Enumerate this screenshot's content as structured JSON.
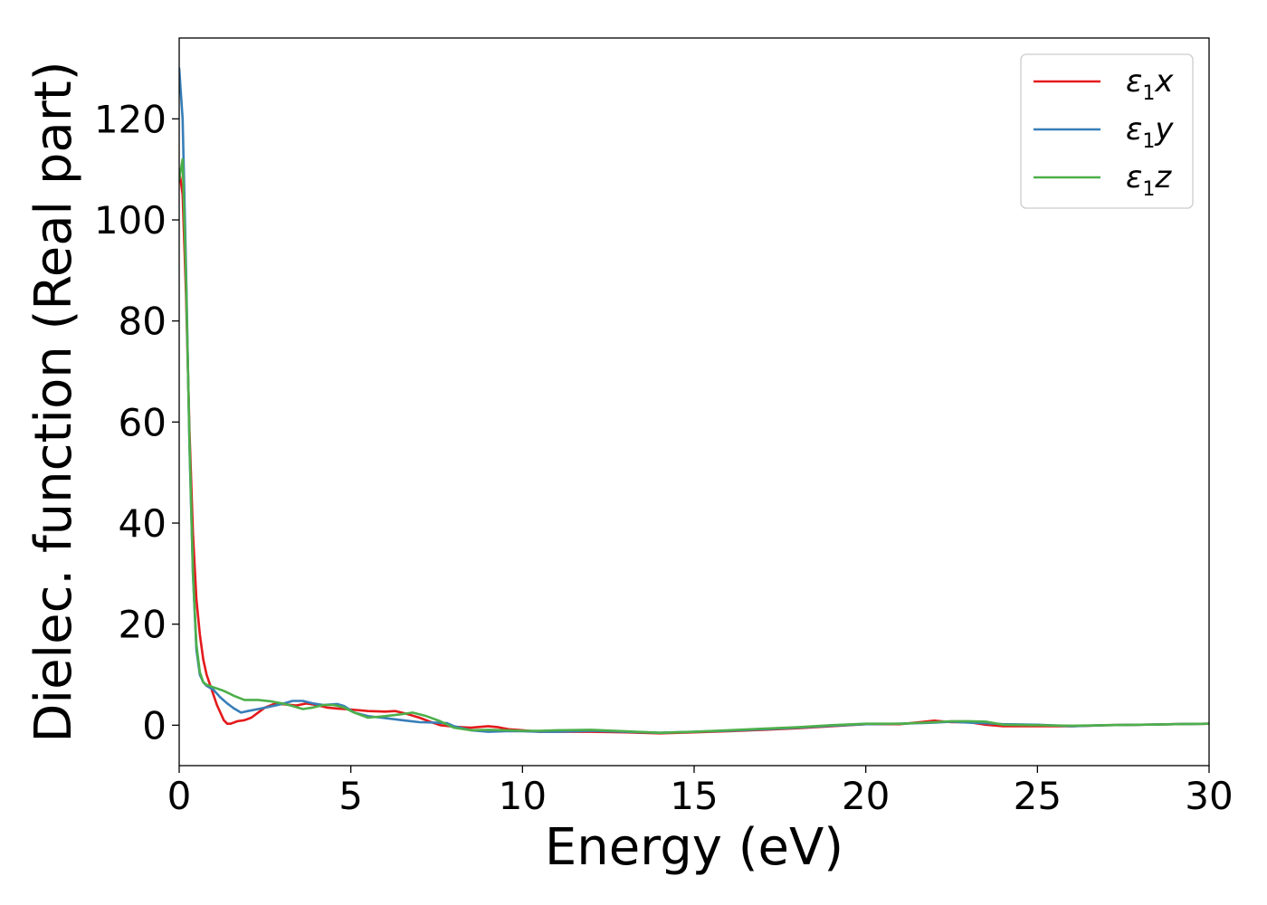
{
  "chart_data": {
    "type": "line",
    "xlabel": "Energy (eV)",
    "ylabel": "Dielec. function (Real part)",
    "xlim": [
      0,
      30
    ],
    "ylim": [
      -8,
      136
    ],
    "xticks": [
      0,
      5,
      10,
      15,
      20,
      25,
      30
    ],
    "yticks": [
      0,
      20,
      40,
      60,
      80,
      100,
      120
    ],
    "grid": false,
    "legend_position": "top-right",
    "series": [
      {
        "name": "ε1x",
        "symbol": "ε",
        "subscript": "1",
        "axis": "x",
        "color": "#e41a1c",
        "points": [
          [
            0,
            110
          ],
          [
            0.1,
            105
          ],
          [
            0.2,
            85
          ],
          [
            0.3,
            58
          ],
          [
            0.4,
            38
          ],
          [
            0.5,
            25
          ],
          [
            0.6,
            18
          ],
          [
            0.7,
            13
          ],
          [
            0.8,
            10
          ],
          [
            0.9,
            8
          ],
          [
            1.0,
            6
          ],
          [
            1.1,
            4
          ],
          [
            1.2,
            2.5
          ],
          [
            1.3,
            1
          ],
          [
            1.4,
            0.3
          ],
          [
            1.5,
            0.3
          ],
          [
            1.7,
            0.8
          ],
          [
            1.9,
            1
          ],
          [
            2.1,
            1.5
          ],
          [
            2.3,
            2.5
          ],
          [
            2.5,
            3.5
          ],
          [
            2.8,
            4.3
          ],
          [
            3.1,
            4.1
          ],
          [
            3.4,
            3.9
          ],
          [
            3.7,
            4.3
          ],
          [
            4.0,
            4
          ],
          [
            4.3,
            3.5
          ],
          [
            4.6,
            3.3
          ],
          [
            5.0,
            3.1
          ],
          [
            5.5,
            2.8
          ],
          [
            6.0,
            2.7
          ],
          [
            6.3,
            2.8
          ],
          [
            6.6,
            2.3
          ],
          [
            7.0,
            1.5
          ],
          [
            7.3,
            0.7
          ],
          [
            7.6,
            0
          ],
          [
            8.0,
            -0.3
          ],
          [
            8.5,
            -0.5
          ],
          [
            9.0,
            -0.2
          ],
          [
            9.3,
            -0.4
          ],
          [
            9.6,
            -0.8
          ],
          [
            10.0,
            -1
          ],
          [
            10.5,
            -1.3
          ],
          [
            11.0,
            -1.3
          ],
          [
            12.0,
            -1.3
          ],
          [
            13.0,
            -1.4
          ],
          [
            14.0,
            -1.6
          ],
          [
            15.0,
            -1.4
          ],
          [
            16.0,
            -1.2
          ],
          [
            17.0,
            -0.9
          ],
          [
            18.0,
            -0.6
          ],
          [
            19.0,
            -0.2
          ],
          [
            20.0,
            0.2
          ],
          [
            21.0,
            0.2
          ],
          [
            22.0,
            0.9
          ],
          [
            22.5,
            0.6
          ],
          [
            23.0,
            0.6
          ],
          [
            23.5,
            0.1
          ],
          [
            24.0,
            -0.2
          ],
          [
            25.0,
            -0.2
          ],
          [
            26.0,
            -0.2
          ],
          [
            27.0,
            0
          ],
          [
            28.0,
            0.1
          ],
          [
            29.0,
            0.2
          ],
          [
            30.0,
            0.3
          ]
        ]
      },
      {
        "name": "ε1y",
        "symbol": "ε",
        "subscript": "1",
        "axis": "y",
        "color": "#377eb8",
        "points": [
          [
            0,
            130
          ],
          [
            0.1,
            120
          ],
          [
            0.2,
            90
          ],
          [
            0.3,
            55
          ],
          [
            0.4,
            30
          ],
          [
            0.5,
            15
          ],
          [
            0.6,
            10
          ],
          [
            0.7,
            8.5
          ],
          [
            0.8,
            7.8
          ],
          [
            1.0,
            7
          ],
          [
            1.2,
            5.5
          ],
          [
            1.4,
            4.3
          ],
          [
            1.6,
            3.3
          ],
          [
            1.8,
            2.5
          ],
          [
            2.0,
            2.8
          ],
          [
            2.3,
            3.2
          ],
          [
            2.6,
            3.6
          ],
          [
            3.0,
            4.2
          ],
          [
            3.3,
            4.8
          ],
          [
            3.6,
            4.8
          ],
          [
            3.9,
            4.3
          ],
          [
            4.2,
            4
          ],
          [
            4.6,
            4.2
          ],
          [
            4.8,
            3.8
          ],
          [
            5.1,
            2.5
          ],
          [
            5.5,
            1.8
          ],
          [
            6.0,
            1.4
          ],
          [
            6.5,
            1
          ],
          [
            7.0,
            0.6
          ],
          [
            7.5,
            0.5
          ],
          [
            7.8,
            0.4
          ],
          [
            8.0,
            -0.2
          ],
          [
            8.5,
            -1
          ],
          [
            9.0,
            -1.3
          ],
          [
            9.5,
            -1.2
          ],
          [
            10.0,
            -1.2
          ],
          [
            10.5,
            -1.3
          ],
          [
            11.0,
            -1.3
          ],
          [
            12.0,
            -1.1
          ],
          [
            13.0,
            -1.3
          ],
          [
            14.0,
            -1.5
          ],
          [
            15.0,
            -1.3
          ],
          [
            16.0,
            -1.1
          ],
          [
            17.0,
            -0.8
          ],
          [
            18.0,
            -0.5
          ],
          [
            19.0,
            -0.1
          ],
          [
            20.0,
            0.2
          ],
          [
            21.0,
            0.3
          ],
          [
            22.0,
            0.5
          ],
          [
            22.5,
            0.7
          ],
          [
            23.0,
            0.5
          ],
          [
            23.5,
            0.4
          ],
          [
            24.0,
            0.2
          ],
          [
            25.0,
            0.1
          ],
          [
            26.0,
            -0.2
          ],
          [
            27.0,
            0
          ],
          [
            28.0,
            0.1
          ],
          [
            29.0,
            0.2
          ],
          [
            30.0,
            0.3
          ]
        ]
      },
      {
        "name": "ε1z",
        "symbol": "ε",
        "subscript": "1",
        "axis": "z",
        "color": "#4daf4a",
        "points": [
          [
            0,
            108
          ],
          [
            0.1,
            112
          ],
          [
            0.2,
            88
          ],
          [
            0.3,
            56
          ],
          [
            0.4,
            30
          ],
          [
            0.5,
            16
          ],
          [
            0.6,
            10.5
          ],
          [
            0.7,
            8.5
          ],
          [
            0.8,
            8
          ],
          [
            1.0,
            7.5
          ],
          [
            1.3,
            6.8
          ],
          [
            1.6,
            5.8
          ],
          [
            1.9,
            5
          ],
          [
            2.3,
            5
          ],
          [
            2.7,
            4.7
          ],
          [
            3.0,
            4.3
          ],
          [
            3.3,
            3.8
          ],
          [
            3.6,
            3.2
          ],
          [
            3.9,
            3.5
          ],
          [
            4.2,
            4
          ],
          [
            4.5,
            4
          ],
          [
            4.8,
            3.5
          ],
          [
            5.1,
            2.5
          ],
          [
            5.5,
            1.5
          ],
          [
            6.0,
            1.8
          ],
          [
            6.4,
            2.1
          ],
          [
            6.8,
            2.5
          ],
          [
            7.2,
            1.8
          ],
          [
            7.6,
            0.8
          ],
          [
            8.0,
            -0.5
          ],
          [
            8.5,
            -1
          ],
          [
            9.0,
            -0.9
          ],
          [
            9.5,
            -1
          ],
          [
            10.0,
            -1.1
          ],
          [
            10.5,
            -1.1
          ],
          [
            11.0,
            -1
          ],
          [
            12.0,
            -0.9
          ],
          [
            13.0,
            -1.2
          ],
          [
            14.0,
            -1.5
          ],
          [
            15.0,
            -1.3
          ],
          [
            16.0,
            -1
          ],
          [
            17.0,
            -0.7
          ],
          [
            18.0,
            -0.4
          ],
          [
            19.0,
            0
          ],
          [
            20.0,
            0.3
          ],
          [
            21.0,
            0.3
          ],
          [
            22.0,
            0.6
          ],
          [
            22.5,
            0.8
          ],
          [
            23.0,
            0.8
          ],
          [
            23.5,
            0.7
          ],
          [
            24.0,
            0.1
          ],
          [
            25.0,
            0
          ],
          [
            26.0,
            -0.1
          ],
          [
            27.0,
            0
          ],
          [
            28.0,
            0.1
          ],
          [
            29.0,
            0.2
          ],
          [
            30.0,
            0.3
          ]
        ]
      }
    ]
  }
}
